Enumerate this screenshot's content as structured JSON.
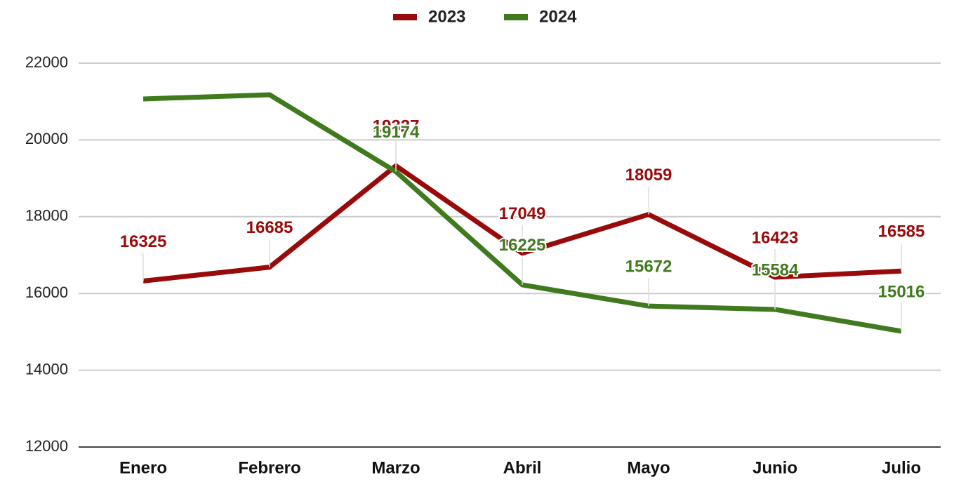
{
  "chart_data": {
    "type": "line",
    "categories": [
      "Enero",
      "Febrero",
      "Marzo",
      "Abril",
      "Mayo",
      "Junio",
      "Julio"
    ],
    "series": [
      {
        "name": "2023",
        "color": "#990b0b",
        "values": [
          16325,
          16685,
          19327,
          17049,
          18059,
          16423,
          16585
        ],
        "value_labels": [
          "16325",
          "16685",
          "19327",
          "17049",
          "18059",
          "16423",
          "16585"
        ]
      },
      {
        "name": "2024",
        "color": "#407a1e",
        "values": [
          21068,
          21177,
          19174,
          16225,
          15672,
          15584,
          15016
        ],
        "value_labels": [
          null,
          null,
          "19174",
          "16225",
          "15672",
          "15584",
          "15016"
        ]
      }
    ],
    "ylim": [
      12000,
      22000
    ],
    "yticks": [
      12000,
      14000,
      16000,
      18000,
      20000,
      22000
    ],
    "grid": true,
    "legend": "top"
  }
}
